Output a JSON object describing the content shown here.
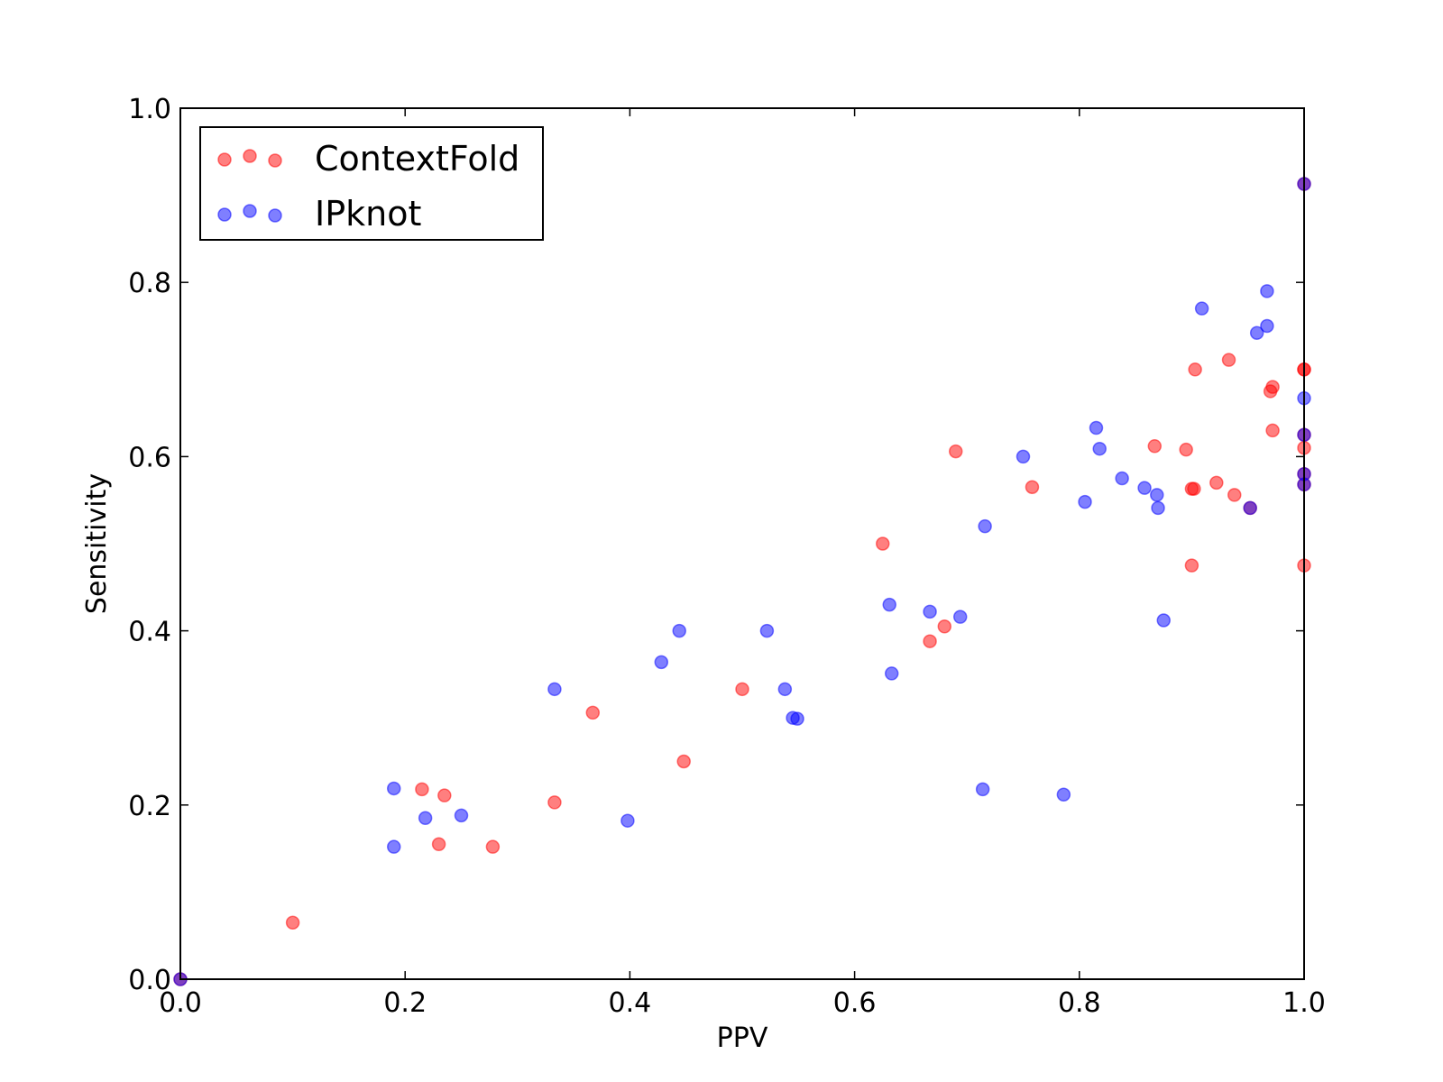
{
  "chart_data": {
    "type": "scatter",
    "xlabel": "PPV",
    "ylabel": "Sensitivity",
    "xlim": [
      0.0,
      1.0
    ],
    "ylim": [
      0.0,
      1.0
    ],
    "x_ticks": [
      "0.0",
      "0.2",
      "0.4",
      "0.6",
      "0.8",
      "1.0"
    ],
    "y_ticks": [
      "0.0",
      "0.2",
      "0.4",
      "0.6",
      "0.8",
      "1.0"
    ],
    "grid": false,
    "legend_position": "top-left",
    "series": [
      {
        "name": "ContextFold",
        "color": "#ff0000",
        "points": [
          [
            0.0,
            0.0
          ],
          [
            0.1,
            0.065
          ],
          [
            0.215,
            0.218
          ],
          [
            0.23,
            0.155
          ],
          [
            0.235,
            0.211
          ],
          [
            0.278,
            0.152
          ],
          [
            0.333,
            0.203
          ],
          [
            0.367,
            0.306
          ],
          [
            0.448,
            0.25
          ],
          [
            0.5,
            0.333
          ],
          [
            0.625,
            0.5
          ],
          [
            0.667,
            0.388
          ],
          [
            0.68,
            0.405
          ],
          [
            0.69,
            0.606
          ],
          [
            0.758,
            0.565
          ],
          [
            0.867,
            0.612
          ],
          [
            0.895,
            0.608
          ],
          [
            0.9,
            0.563
          ],
          [
            0.9,
            0.475
          ],
          [
            0.902,
            0.563
          ],
          [
            0.903,
            0.7
          ],
          [
            0.922,
            0.57
          ],
          [
            0.933,
            0.711
          ],
          [
            0.938,
            0.556
          ],
          [
            0.952,
            0.541
          ],
          [
            0.97,
            0.675
          ],
          [
            0.972,
            0.68
          ],
          [
            0.972,
            0.63
          ],
          [
            1.0,
            0.7
          ],
          [
            1.0,
            0.7
          ],
          [
            1.0,
            0.61
          ],
          [
            1.0,
            0.625
          ],
          [
            1.0,
            0.58
          ],
          [
            1.0,
            0.568
          ],
          [
            1.0,
            0.475
          ],
          [
            1.0,
            0.913
          ]
        ]
      },
      {
        "name": "IPknot",
        "color": "#0000ff",
        "points": [
          [
            0.0,
            0.0
          ],
          [
            0.19,
            0.219
          ],
          [
            0.19,
            0.152
          ],
          [
            0.218,
            0.185
          ],
          [
            0.25,
            0.188
          ],
          [
            0.333,
            0.333
          ],
          [
            0.398,
            0.182
          ],
          [
            0.428,
            0.364
          ],
          [
            0.444,
            0.4
          ],
          [
            0.522,
            0.4
          ],
          [
            0.538,
            0.333
          ],
          [
            0.545,
            0.3
          ],
          [
            0.549,
            0.299
          ],
          [
            0.631,
            0.43
          ],
          [
            0.633,
            0.351
          ],
          [
            0.667,
            0.422
          ],
          [
            0.694,
            0.416
          ],
          [
            0.714,
            0.218
          ],
          [
            0.716,
            0.52
          ],
          [
            0.75,
            0.6
          ],
          [
            0.786,
            0.212
          ],
          [
            0.805,
            0.548
          ],
          [
            0.815,
            0.633
          ],
          [
            0.818,
            0.609
          ],
          [
            0.838,
            0.575
          ],
          [
            0.858,
            0.564
          ],
          [
            0.869,
            0.556
          ],
          [
            0.87,
            0.541
          ],
          [
            0.875,
            0.412
          ],
          [
            0.909,
            0.77
          ],
          [
            0.952,
            0.541
          ],
          [
            0.958,
            0.742
          ],
          [
            0.967,
            0.79
          ],
          [
            0.967,
            0.75
          ],
          [
            1.0,
            0.667
          ],
          [
            1.0,
            0.625
          ],
          [
            1.0,
            0.58
          ],
          [
            1.0,
            0.568
          ],
          [
            1.0,
            0.913
          ]
        ]
      }
    ]
  }
}
